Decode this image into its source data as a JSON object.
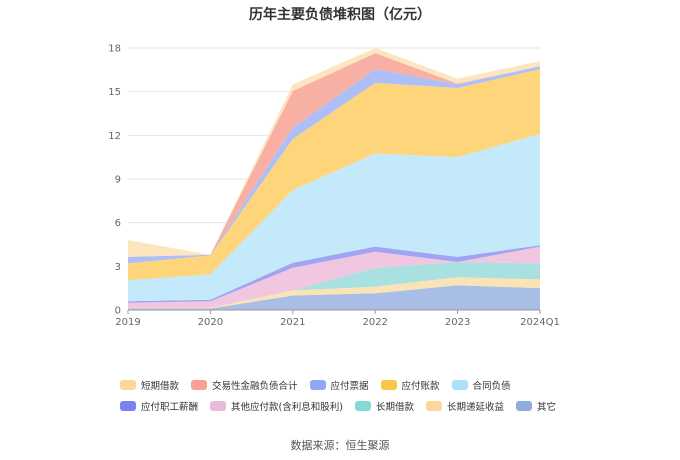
{
  "chart_data": {
    "type": "area",
    "stacked": true,
    "title": "历年主要负债堆积图（亿元）",
    "categories": [
      "2019",
      "2020",
      "2021",
      "2022",
      "2023",
      "2024Q1"
    ],
    "ylim": [
      0,
      18
    ],
    "yticks": [
      0,
      3,
      6,
      9,
      12,
      15,
      18
    ],
    "grid": true,
    "legend_position": "bottom",
    "series": [
      {
        "name": "其它",
        "color": "#a9bee6",
        "values": [
          0.1,
          0.1,
          1.0,
          1.15,
          1.7,
          1.5
        ]
      },
      {
        "name": "长期递延收益",
        "color": "#fbe3b6",
        "values": [
          0.05,
          0.05,
          0.35,
          0.45,
          0.55,
          0.6
        ]
      },
      {
        "name": "长期借款",
        "color": "#a9e1e0",
        "values": [
          0.0,
          0.0,
          0.0,
          1.3,
          1.05,
          1.1
        ]
      },
      {
        "name": "其他应付款(含利息和股利)",
        "color": "#f1c6e0",
        "values": [
          0.35,
          0.45,
          1.55,
          1.1,
          0.0,
          1.15
        ]
      },
      {
        "name": "应付职工薪酬",
        "color": "#a0a4f3",
        "values": [
          0.1,
          0.1,
          0.35,
          0.35,
          0.35,
          0.1
        ]
      },
      {
        "name": "合同负债",
        "color": "#c4e9fb",
        "values": [
          1.45,
          1.75,
          5.0,
          6.4,
          6.85,
          7.65
        ]
      },
      {
        "name": "应付账款",
        "color": "#fed57b",
        "values": [
          1.15,
          1.3,
          3.5,
          4.85,
          4.75,
          4.45
        ]
      },
      {
        "name": "应付票据",
        "color": "#aebff8",
        "values": [
          0.45,
          0.05,
          0.8,
          0.95,
          0.25,
          0.2
        ]
      },
      {
        "name": "交易性金融负债合计",
        "color": "#f9b0a4",
        "values": [
          0.0,
          0.0,
          2.5,
          1.1,
          0.05,
          0.0
        ]
      },
      {
        "name": "短期借款",
        "color": "#fce6c0",
        "values": [
          1.15,
          0.0,
          0.45,
          0.35,
          0.35,
          0.35
        ]
      }
    ],
    "legend_order": [
      "短期借款",
      "交易性金融负债合计",
      "应付票据",
      "应付账款",
      "合同负债",
      "应付职工薪酬",
      "其他应付款(含利息和股利)",
      "长期借款",
      "长期递延收益",
      "其它"
    ]
  },
  "legend_colors": {
    "短期借款": "#fbd798",
    "交易性金融负债合计": "#f7a195",
    "应付票据": "#8fa8f3",
    "应付账款": "#fbc645",
    "合同负债": "#abe0f7",
    "应付职工薪酬": "#7b7ff0",
    "其他应付款(含利息和股利)": "#ebb9da",
    "长期借款": "#84d8d6",
    "长期递延收益": "#fbd79d",
    "其它": "#91abdf"
  },
  "footer": {
    "source": "数据来源：恒生聚源"
  }
}
